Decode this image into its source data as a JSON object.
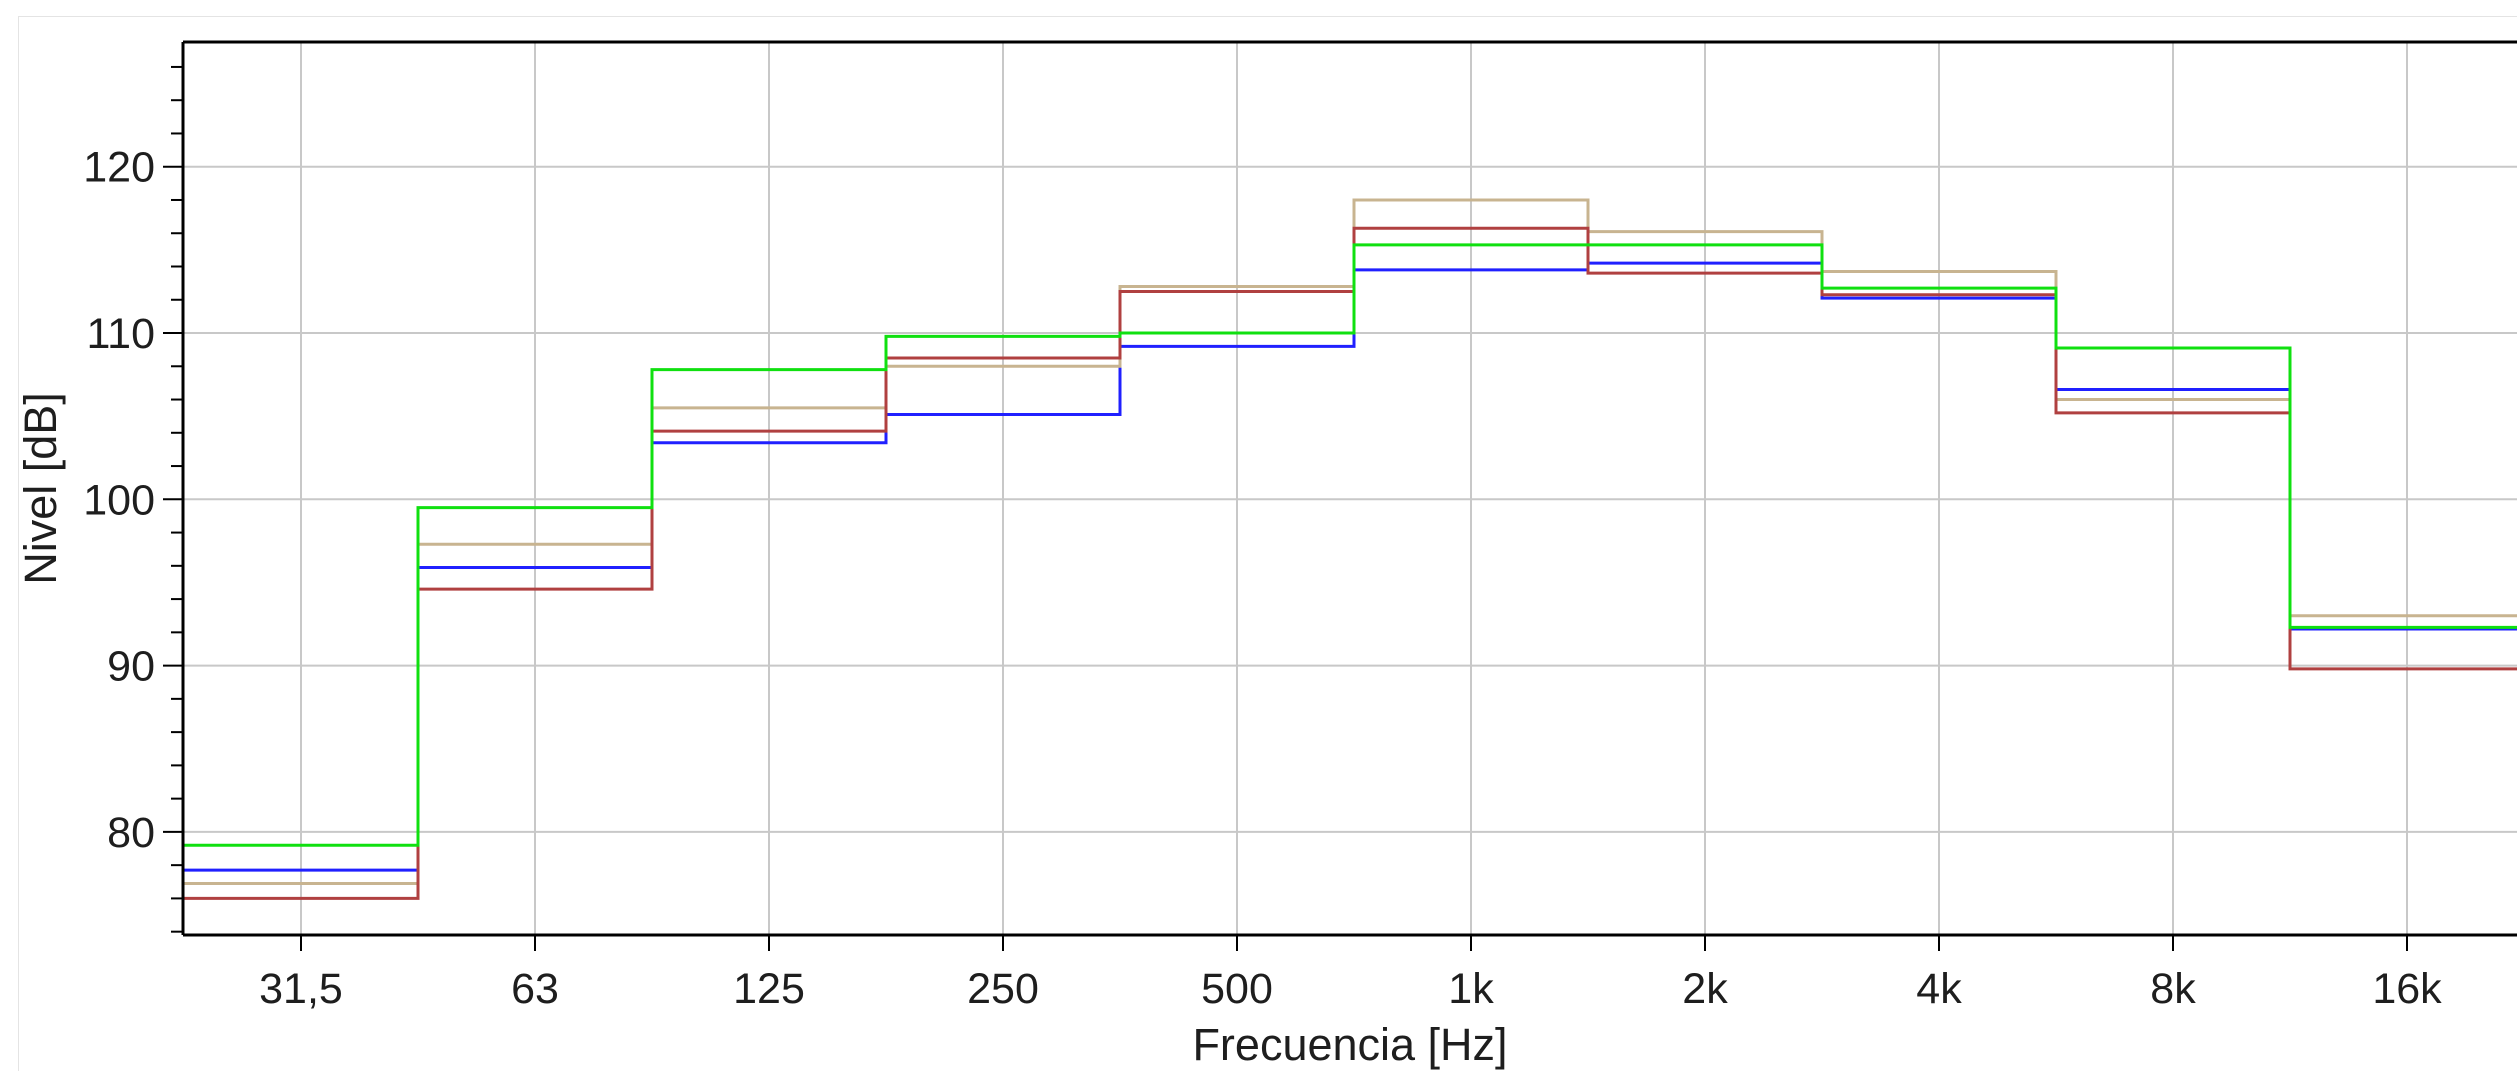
{
  "chart_data": {
    "type": "line",
    "step": true,
    "title": "",
    "xlabel": "Frecuencia [Hz]",
    "ylabel": "Nivel [dB]",
    "x": [
      "31,5",
      "63",
      "125",
      "250",
      "500",
      "1k",
      "2k",
      "4k",
      "8k",
      "16k"
    ],
    "ylim": [
      73.8,
      127.5
    ],
    "yticks": [
      80,
      90,
      100,
      110,
      120
    ],
    "grid": true,
    "legend": "none",
    "series": [
      {
        "color": "#2020ff",
        "values": [
          77.7,
          95.9,
          103.4,
          105.1,
          109.2,
          113.8,
          114.2,
          112.1,
          106.6,
          92.2
        ]
      },
      {
        "color": "#c8b490",
        "values": [
          76.9,
          97.3,
          105.5,
          108.0,
          112.8,
          118.0,
          116.1,
          113.7,
          106.0,
          93.0
        ]
      },
      {
        "color": "#b04040",
        "values": [
          76.0,
          94.6,
          104.1,
          108.5,
          112.5,
          116.3,
          113.6,
          112.3,
          105.2,
          89.8
        ]
      },
      {
        "color": "#10e010",
        "values": [
          79.2,
          99.5,
          107.8,
          109.8,
          110.0,
          115.3,
          115.3,
          112.7,
          109.1,
          92.3
        ]
      }
    ]
  }
}
